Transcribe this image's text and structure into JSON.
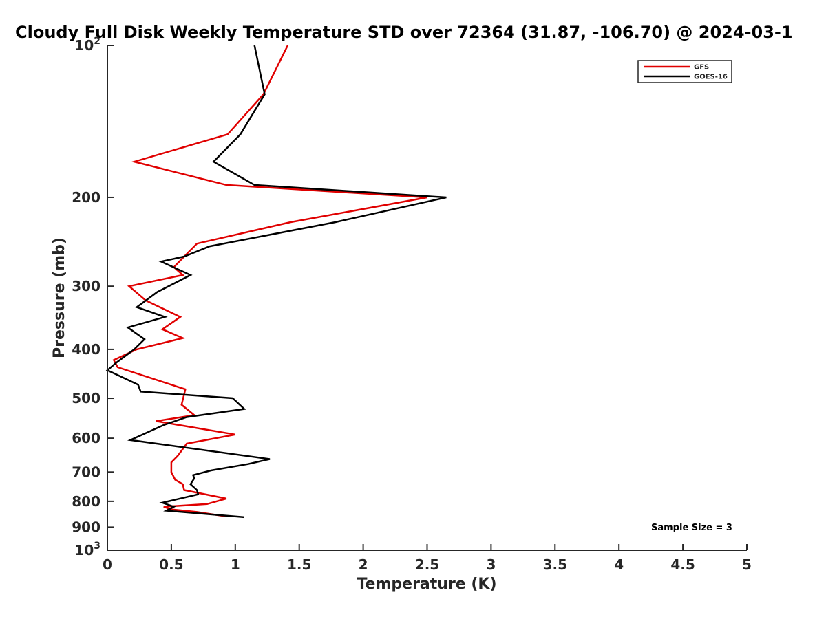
{
  "chart_data": {
    "type": "line",
    "title": "Cloudy Full Disk Weekly Temperature STD over 72364 (31.87, -106.70) @ 2024-03-1",
    "xlabel": "Temperature (K)",
    "ylabel": "Pressure (mb)",
    "xlim": [
      0,
      5
    ],
    "ylim": [
      100,
      1000
    ],
    "y_scale": "log",
    "y_reversed": true,
    "grid": false,
    "legend_position": "top-right",
    "x_ticks": [
      0,
      0.5,
      1,
      1.5,
      2,
      2.5,
      3,
      3.5,
      4,
      4.5,
      5
    ],
    "x_tick_labels": [
      "0",
      "0.5",
      "1",
      "1.5",
      "2",
      "2.5",
      "3",
      "3.5",
      "4",
      "4.5",
      "5"
    ],
    "y_ticks": [
      {
        "value": 100,
        "base": "10",
        "exp": "2"
      },
      {
        "value": 200,
        "label": "200"
      },
      {
        "value": 300,
        "label": "300"
      },
      {
        "value": 400,
        "label": "400"
      },
      {
        "value": 500,
        "label": "500"
      },
      {
        "value": 600,
        "label": "600"
      },
      {
        "value": 700,
        "label": "700"
      },
      {
        "value": 800,
        "label": "800"
      },
      {
        "value": 900,
        "label": "900"
      },
      {
        "value": 1000,
        "base": "10",
        "exp": "3"
      }
    ],
    "annotation": "Sample Size = 3",
    "series": [
      {
        "name": "GFS",
        "color": "#e00000",
        "points": [
          [
            1.41,
            100
          ],
          [
            1.22,
            125
          ],
          [
            0.94,
            150
          ],
          [
            0.21,
            170
          ],
          [
            0.93,
            189
          ],
          [
            2.5,
            200
          ],
          [
            1.43,
            224
          ],
          [
            0.7,
            247
          ],
          [
            0.55,
            270
          ],
          [
            0.52,
            275
          ],
          [
            0.59,
            285
          ],
          [
            0.17,
            300
          ],
          [
            0.3,
            320
          ],
          [
            0.57,
            345
          ],
          [
            0.43,
            365
          ],
          [
            0.59,
            380
          ],
          [
            0.23,
            400
          ],
          [
            0.05,
            420
          ],
          [
            0.08,
            434
          ],
          [
            0.61,
            480
          ],
          [
            0.58,
            515
          ],
          [
            0.68,
            540
          ],
          [
            0.38,
            555
          ],
          [
            1.0,
            590
          ],
          [
            0.62,
            615
          ],
          [
            0.6,
            625
          ],
          [
            0.55,
            650
          ],
          [
            0.5,
            670
          ],
          [
            0.5,
            700
          ],
          [
            0.53,
            725
          ],
          [
            0.59,
            740
          ],
          [
            0.6,
            760
          ],
          [
            0.93,
            790
          ],
          [
            0.78,
            810
          ],
          [
            0.44,
            820
          ],
          [
            0.5,
            830
          ],
          [
            0.7,
            840
          ],
          [
            0.93,
            857
          ]
        ]
      },
      {
        "name": "GOES-16",
        "color": "#000000",
        "points": [
          [
            1.15,
            100
          ],
          [
            1.23,
            125
          ],
          [
            1.04,
            150
          ],
          [
            0.83,
            170
          ],
          [
            1.15,
            189
          ],
          [
            2.65,
            200
          ],
          [
            1.78,
            224
          ],
          [
            0.8,
            250
          ],
          [
            0.6,
            262
          ],
          [
            0.42,
            268
          ],
          [
            0.65,
            285
          ],
          [
            0.39,
            308
          ],
          [
            0.23,
            330
          ],
          [
            0.45,
            345
          ],
          [
            0.16,
            362
          ],
          [
            0.29,
            382
          ],
          [
            0.21,
            400
          ],
          [
            0.07,
            425
          ],
          [
            0.0,
            440
          ],
          [
            0.24,
            470
          ],
          [
            0.26,
            485
          ],
          [
            0.98,
            500
          ],
          [
            1.07,
            525
          ],
          [
            0.62,
            545
          ],
          [
            0.44,
            565
          ],
          [
            0.18,
            605
          ],
          [
            1.27,
            660
          ],
          [
            1.1,
            675
          ],
          [
            0.81,
            695
          ],
          [
            0.67,
            710
          ],
          [
            0.68,
            720
          ],
          [
            0.65,
            740
          ],
          [
            0.7,
            760
          ],
          [
            0.71,
            775
          ],
          [
            0.43,
            805
          ],
          [
            0.52,
            820
          ],
          [
            0.46,
            835
          ],
          [
            1.07,
            860
          ]
        ]
      }
    ]
  }
}
